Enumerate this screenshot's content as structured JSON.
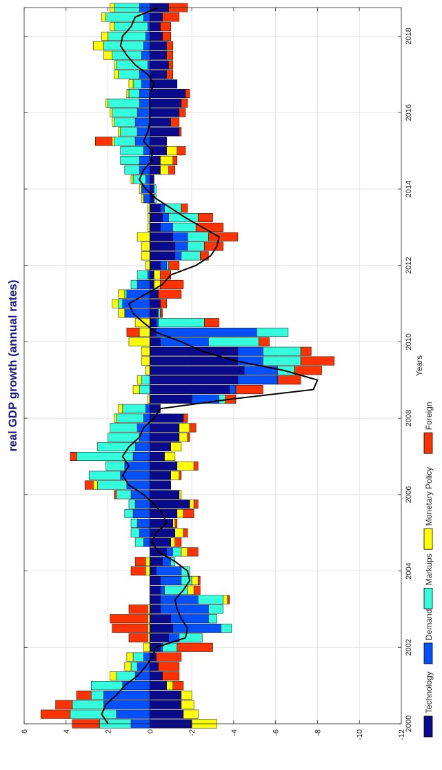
{
  "chart_data": {
    "type": "bar",
    "orientation": "stacked-bar-with-line",
    "title": "real GDP growth (annual rates)",
    "xlabel": "Years",
    "ylabel": "",
    "xlim": [
      2000,
      2018.75
    ],
    "ylim": [
      -12,
      6
    ],
    "xticks": [
      2000,
      2002,
      2004,
      2006,
      2008,
      2010,
      2012,
      2014,
      2016,
      2018
    ],
    "yticks": [
      -12,
      -10,
      -8,
      -6,
      -4,
      -2,
      0,
      2,
      4,
      6
    ],
    "grid": true,
    "legend_position": "bottom",
    "colors": {
      "Technology": "#0a0a8c",
      "Demand": "#0050ff",
      "Markups": "#33ffdd",
      "Monetary Policy": "#ffff00",
      "Foreign": "#ff3300",
      "line": "#000000",
      "title": "#1a1a8c"
    },
    "x": [
      2000.0,
      2000.25,
      2000.5,
      2000.75,
      2001.0,
      2001.25,
      2001.5,
      2001.75,
      2002.0,
      2002.25,
      2002.5,
      2002.75,
      2003.0,
      2003.25,
      2003.5,
      2003.75,
      2004.0,
      2004.25,
      2004.5,
      2004.75,
      2005.0,
      2005.25,
      2005.5,
      2005.75,
      2006.0,
      2006.25,
      2006.5,
      2006.75,
      2007.0,
      2007.25,
      2007.5,
      2007.75,
      2008.0,
      2008.25,
      2008.5,
      2008.75,
      2009.0,
      2009.25,
      2009.5,
      2009.75,
      2010.0,
      2010.25,
      2010.5,
      2010.75,
      2011.0,
      2011.25,
      2011.5,
      2011.75,
      2012.0,
      2012.25,
      2012.5,
      2012.75,
      2013.0,
      2013.25,
      2013.5,
      2013.75,
      2014.0,
      2014.25,
      2014.5,
      2014.75,
      2015.0,
      2015.25,
      2015.5,
      2015.75,
      2016.0,
      2016.25,
      2016.5,
      2016.75,
      2017.0,
      2017.25,
      2017.5,
      2017.75,
      2018.0,
      2018.25,
      2018.5,
      2018.75
    ],
    "series": [
      {
        "name": "Technology",
        "values": [
          -2.0,
          -1.6,
          -1.5,
          -1.5,
          -0.8,
          -0.6,
          -0.4,
          -0.3,
          -0.5,
          -0.9,
          -1.1,
          -1.0,
          -0.5,
          -0.5,
          -0.5,
          -0.5,
          -0.3,
          -0.6,
          -0.8,
          -1.0,
          -1.2,
          -1.1,
          -1.3,
          -1.9,
          -1.4,
          -1.0,
          -1.0,
          -1.3,
          -0.7,
          -1.0,
          -1.4,
          -1.4,
          -1.6,
          -0.5,
          -2.0,
          -3.8,
          -4.2,
          -4.5,
          -4.2,
          -4.2,
          -0.5,
          -0.3,
          -0.3,
          -0.4,
          -0.5,
          -0.4,
          -0.2,
          -0.2,
          -0.5,
          -1.2,
          -1.2,
          -1.1,
          -0.5,
          -0.6,
          -0.5,
          -0.2,
          -0.2,
          -0.2,
          -0.5,
          -0.5,
          -0.8,
          -0.8,
          -1.4,
          -1.0,
          -1.4,
          -1.5,
          -1.7,
          -1.3,
          -0.8,
          -0.9,
          -0.8,
          -0.8,
          -0.6,
          -0.5,
          -0.6,
          -0.9
        ]
      },
      {
        "name": "Demand",
        "values": [
          0.9,
          1.6,
          2.2,
          2.2,
          1.3,
          0.7,
          0.6,
          0.3,
          -0.1,
          -0.5,
          -2.3,
          -1.8,
          -2.3,
          -1.8,
          -0.2,
          -1.0,
          -1.2,
          -0.4,
          -0.3,
          0.3,
          0.5,
          0.6,
          0.8,
          0.7,
          0.9,
          1.1,
          1.4,
          1.2,
          0.8,
          0.7,
          0.5,
          0.6,
          0.3,
          0.2,
          -1.3,
          -0.3,
          -1.9,
          -1.6,
          -1.2,
          -1.2,
          -2.3,
          -4.8,
          -0.1,
          1.2,
          1.3,
          1.1,
          0.6,
          0.1,
          -0.3,
          -0.3,
          -0.6,
          -0.7,
          -0.6,
          -0.3,
          -0.2,
          0.3,
          0.4,
          0.2,
          0.5,
          0.5,
          0.3,
          0.7,
          0.6,
          0.7,
          0.6,
          0.5,
          0.5,
          0.4,
          0.5,
          0.1,
          0.4,
          0.3,
          0.2,
          0.1,
          0.3,
          0.5
        ]
      },
      {
        "name": "Markups",
        "values": [
          1.5,
          2.2,
          1.5,
          0.6,
          1.5,
          0.9,
          0.3,
          0.5,
          -0.7,
          -1.1,
          -0.5,
          -0.4,
          -0.7,
          -1.2,
          -1.1,
          -0.5,
          -0.4,
          -0.2,
          -0.4,
          0.4,
          0.4,
          0.3,
          0.4,
          0.3,
          0.7,
          1.4,
          1.5,
          0.9,
          2.7,
          1.8,
          1.5,
          1.3,
          1.3,
          1.1,
          -0.3,
          0.5,
          0.4,
          -0.8,
          -1.8,
          -1.8,
          -2.4,
          -1.5,
          -2.2,
          -0.1,
          0.2,
          0.1,
          0.3,
          0.5,
          -0.1,
          -0.9,
          -0.8,
          -1.0,
          -1.1,
          -1.4,
          -0.8,
          -0.1,
          -0.1,
          0.6,
          0.7,
          0.9,
          1.1,
          1.0,
          0.8,
          1.0,
          1.2,
          1.5,
          0.5,
          0.4,
          1.0,
          1.5,
          1.4,
          1.9,
          1.8,
          1.6,
          1.8,
          1.2
        ]
      },
      {
        "name": "Monetary Policy",
        "values": [
          -1.2,
          -0.7,
          -0.6,
          -0.5,
          -0.3,
          0.3,
          0.3,
          0.3,
          0.3,
          0.1,
          0.1,
          0.1,
          0.1,
          -0.2,
          -0.3,
          -0.3,
          0.2,
          0.2,
          -0.3,
          -0.2,
          -0.4,
          -0.1,
          -0.3,
          -0.2,
          -0.1,
          0.2,
          -0.4,
          -0.8,
          -0.5,
          -0.5,
          -0.4,
          -0.5,
          0.1,
          0.2,
          0.1,
          0.3,
          0.2,
          0.2,
          0.4,
          0.4,
          1.0,
          0.5,
          0.7,
          0.3,
          0.3,
          0.3,
          -0.3,
          -0.3,
          0.2,
          0.4,
          0.4,
          0.6,
          0.1,
          0.1,
          0.1,
          0.1,
          0.1,
          0.1,
          -0.4,
          -0.6,
          -0.5,
          0.1,
          0.1,
          0.1,
          0.1,
          0.1,
          0.1,
          0.2,
          0.2,
          0.1,
          0.4,
          0.5,
          0.3,
          0.2,
          0.2,
          0.2
        ]
      },
      {
        "name": "Foreign",
        "values": [
          1.3,
          1.4,
          0.8,
          0.7,
          -0.5,
          -0.8,
          -1.0,
          -1.2,
          -1.7,
          0.9,
          1.7,
          1.8,
          0.9,
          -0.1,
          -0.3,
          -0.1,
          0.7,
          0.5,
          -0.5,
          -0.3,
          -0.2,
          -0.1,
          -0.5,
          -0.2,
          0.1,
          0.4,
          -0.1,
          -0.2,
          0.3,
          0.0,
          -0.1,
          -0.3,
          -0.2,
          0.0,
          -0.5,
          -1.3,
          -1.1,
          -1.3,
          -1.6,
          -0.5,
          -0.5,
          0.6,
          -0.7,
          -0.1,
          -0.3,
          -1.1,
          -1.1,
          -0.5,
          -0.5,
          -0.4,
          -0.9,
          -1.4,
          -1.3,
          -0.7,
          -0.3,
          0.0,
          0.0,
          0.0,
          -0.3,
          -0.2,
          -0.4,
          0.8,
          -0.1,
          -0.4,
          -0.3,
          -0.3,
          -0.2,
          0.0,
          -0.3,
          -0.2,
          -0.3,
          -0.3,
          -0.4,
          -0.5,
          -0.8,
          -0.9
        ]
      }
    ],
    "line": {
      "values": [
        2.0,
        2.3,
        2.1,
        1.6,
        1.2,
        0.6,
        0.2,
        -0.1,
        -0.3,
        -1.7,
        -1.8,
        -1.5,
        -1.3,
        -1.2,
        -1.6,
        -1.9,
        -1.8,
        -1.2,
        -0.4,
        -0.1,
        -0.3,
        -0.8,
        -0.6,
        -0.2,
        0.3,
        1.0,
        1.3,
        1.0,
        1.3,
        1.0,
        0.5,
        0.3,
        -0.2,
        -0.5,
        -3.9,
        -7.8,
        -8.0,
        -6.4,
        -4.1,
        -2.5,
        -1.5,
        -0.3,
        0.3,
        0.8,
        1.0,
        0.2,
        -0.6,
        -1.0,
        -2.2,
        -2.9,
        -3.2,
        -3.3,
        -2.5,
        -1.7,
        -1.0,
        -0.3,
        0.2,
        0.5,
        0.3,
        -0.1,
        -0.1,
        0.3,
        0.1,
        0.0,
        0.0,
        0.0,
        0.0,
        -0.2,
        0.1,
        0.7,
        1.1,
        1.4,
        1.3,
        0.9,
        0.7,
        -0.4
      ]
    }
  }
}
